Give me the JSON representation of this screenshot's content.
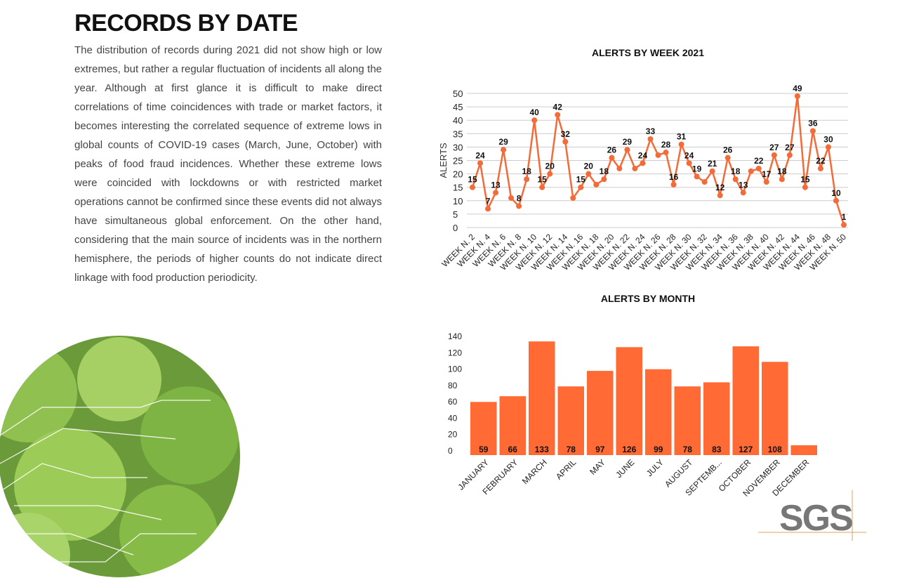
{
  "header": {
    "title": "RECORDS BY DATE"
  },
  "body": {
    "paragraph": "The distribution of records during 2021 did not show high or low extremes, but rather a regular fluctuation of incidents all along the year. Although at first glance it is difficult to make direct correlations of time coincidences with trade or market factors, it becomes interesting the correlated sequence of extreme lows in global counts of COVID-19 cases (March, June, October) with peaks of food fraud incidences. Whether these extreme lows were coincided with lockdowns or with restricted market operations cannot be confirmed since these events did not always have simultaneous global enforcement. On the other hand, considering that the main source of incidents was in the northern hemisphere, the periods of higher counts do not indicate direct linkage with food production periodicity."
  },
  "logo": {
    "text": "SGS"
  },
  "chart_data": [
    {
      "type": "line",
      "title": "ALERTS BY WEEK 2021",
      "y_label": "ALERTS",
      "color": "#f26b38",
      "categories": [
        "WEEK N. 2",
        null,
        "WEEK N. 4",
        null,
        "WEEK N. 6",
        null,
        "WEEK N. 8",
        null,
        "WEEK N. 10",
        null,
        "WEEK N. 12",
        null,
        "WEEK N. 14",
        null,
        "WEEK N. 16",
        null,
        "WEEK N. 18",
        null,
        "WEEK N. 20",
        null,
        "WEEK N. 22",
        null,
        "WEEK N. 24",
        null,
        "WEEK N. 26",
        null,
        "WEEK N. 28",
        null,
        "WEEK N. 30",
        null,
        "WEEK N. 32",
        null,
        "WEEK N. 34",
        null,
        "WEEK N. 36",
        null,
        "WEEK N. 38",
        null,
        "WEEK N. 40",
        null,
        "WEEK N. 42",
        null,
        "WEEK N. 44",
        null,
        "WEEK N. 46",
        null,
        "WEEK N. 48",
        null,
        "WEEK N. 50"
      ],
      "values": [
        15,
        24,
        7,
        13,
        29,
        11,
        8,
        18,
        40,
        15,
        20,
        42,
        32,
        11,
        15,
        20,
        16,
        18,
        26,
        22,
        29,
        22,
        24,
        33,
        27,
        28,
        16,
        31,
        24,
        19,
        17,
        21,
        12,
        26,
        18,
        13,
        21,
        22,
        17,
        27,
        18,
        27,
        49,
        15,
        36,
        22,
        30,
        10,
        1
      ],
      "value_labels": [
        "15",
        "24",
        "7",
        "13",
        "29",
        null,
        "8",
        "18",
        "40",
        "15",
        "20",
        "42",
        "32",
        null,
        "15",
        "20",
        null,
        "18",
        "26",
        null,
        "29",
        null,
        "24",
        "33",
        null,
        "28",
        "16",
        "31",
        "24",
        "19",
        null,
        "21",
        "12",
        "26",
        "18",
        "13",
        null,
        "22",
        "17",
        "27",
        "18",
        "27",
        "49",
        "15",
        "36",
        "22",
        "30",
        "10",
        "1"
      ],
      "ylim": [
        0,
        50
      ],
      "yticks": [
        0,
        5,
        10,
        15,
        20,
        25,
        30,
        35,
        40,
        45,
        50
      ],
      "grid": true
    },
    {
      "type": "bar",
      "title": "ALERTS BY MONTH",
      "color": "#ff6a35",
      "categories": [
        "JANUARY",
        "FEBRUARY",
        "MARCH",
        "APRIL",
        "MAY",
        "JUNE",
        "JULY",
        "AUGUST",
        "SEPTEMB...",
        "OCTOBER",
        "NOVEMBER",
        "DECEMBER"
      ],
      "values": [
        59,
        66,
        133,
        78,
        97,
        126,
        99,
        78,
        83,
        127,
        108,
        6
      ],
      "value_labels": [
        "59",
        "66",
        "133",
        "78",
        "97",
        "126",
        "99",
        "78",
        "83",
        "127",
        "108",
        null
      ],
      "ylim": [
        0,
        140
      ],
      "yticks": [
        0,
        20,
        40,
        60,
        80,
        100,
        120,
        140
      ],
      "grid": false
    }
  ]
}
